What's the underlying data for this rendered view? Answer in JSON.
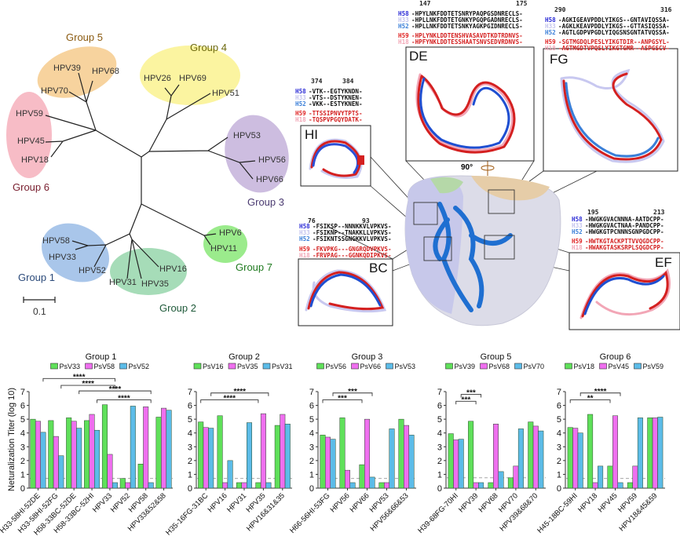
{
  "tree": {
    "scale_bar": "0.1",
    "groups": [
      {
        "name": "Group 1",
        "color": "#a9c6ea",
        "members": [
          "HPV58",
          "HPV33",
          "HPV52"
        ]
      },
      {
        "name": "Group 2",
        "color": "#a6dcb8",
        "members": [
          "HPV31",
          "HPV35",
          "HPV16"
        ]
      },
      {
        "name": "Group 3",
        "color": "#cdbde0",
        "members": [
          "HPV53",
          "HPV56",
          "HPV66"
        ]
      },
      {
        "name": "Group 4",
        "color": "#fbf4a0",
        "members": [
          "HPV26",
          "HPV69",
          "HPV51"
        ]
      },
      {
        "name": "Group 5",
        "color": "#f7d39e",
        "members": [
          "HPV39",
          "HPV68",
          "HPV70"
        ]
      },
      {
        "name": "Group 6",
        "color": "#f7bcc6",
        "members": [
          "HPV59",
          "HPV45",
          "HPV18"
        ]
      },
      {
        "name": "Group 7",
        "color": "#9beb8c",
        "members": [
          "HPV6",
          "HPV11"
        ]
      }
    ]
  },
  "structure": {
    "rotation_label": "90°",
    "row_colors": {
      "H58": "#2b2bd6",
      "H33": "#c4c4ee",
      "H52": "#3a7fd8",
      "H59": "#e02424",
      "H18": "#f2a6b6"
    },
    "insets": [
      {
        "label": "HI",
        "start": "374",
        "end": "384",
        "rows": [
          {
            "name": "H58",
            "seq": "-VTK--EGTYKNDN-"
          },
          {
            "name": "H33",
            "seq": "-VTS--DSTYKNEN-"
          },
          {
            "name": "H52",
            "seq": "-VKK--ESTYKNEN-"
          },
          {
            "name": "H59",
            "seq": "-TTSSIPNVYTPTS-"
          },
          {
            "name": "H18",
            "seq": "-TQSPVPGQYDATK-"
          }
        ]
      },
      {
        "label": "DE",
        "start": "147",
        "end": "175",
        "rows": [
          {
            "name": "H58",
            "seq": "-HPYLNKFDDTETSNRYPAQPGSDNRECLS-"
          },
          {
            "name": "H33",
            "seq": "-HPLLNKFDDTETGNKYPGQPGADNRECLS-"
          },
          {
            "name": "H52",
            "seq": "-HPLLNKFDDTETSNKYAGKPGIDNRECLS-"
          },
          {
            "name": "H59",
            "seq": "-HPLYNKLDDTENSHVASAVDTKDTRDNVS-"
          },
          {
            "name": "H18",
            "seq": "-HPFYNKLDDTESSHAATSNVSEDVRDNVS-"
          }
        ]
      },
      {
        "label": "FG",
        "start": "290",
        "end": "316",
        "rows": [
          {
            "name": "H58",
            "seq": "-AGKIGEAVPDDLYIKGS--GNTAVIQSSA-"
          },
          {
            "name": "H33",
            "seq": "-AGKLKEAVPDDLYIKGS--GTTASIQSSA-"
          },
          {
            "name": "H52",
            "seq": "-AGTLGDPVPGDLYIQGSNSGNTATVQSSA-"
          },
          {
            "name": "H59",
            "seq": "-SGTMGDQLPESLYIKGTDIR--ANPGSYL-"
          },
          {
            "name": "H18",
            "seq": "-AGTMGDTVPQSLYIKGTGMR--ASPGSCV-"
          }
        ]
      },
      {
        "label": "BC",
        "start": "76",
        "end": "93",
        "rows": [
          {
            "name": "H58",
            "seq": "-FSIKSP--NNNKKVLVPKVS-"
          },
          {
            "name": "H33",
            "seq": "-FSIKNP--TNAKKLLVPKVS-"
          },
          {
            "name": "H52",
            "seq": "-FSIKNTSSGNGKKVLVPKVS-"
          },
          {
            "name": "H59",
            "seq": "-FKVPKG---GNGRQDVPKVS-"
          },
          {
            "name": "H18",
            "seq": "-FRVPAG---GGNKQDIPKVS-"
          }
        ]
      },
      {
        "label": "EF",
        "start": "195",
        "end": "213",
        "rows": [
          {
            "name": "H58",
            "seq": "-HWGKGVACNNNA-AATDCPP-"
          },
          {
            "name": "H33",
            "seq": "-HWGKGVACTNAA-PANDCPP-"
          },
          {
            "name": "H52",
            "seq": "-HWGKGTPCNNNSGNPGDCPP-"
          },
          {
            "name": "H59",
            "seq": "-HWTKGTACKPTTVVQGDCPP-"
          },
          {
            "name": "H18",
            "seq": "-HWAKGTASKSRPLSQGDCPP-"
          }
        ]
      }
    ]
  },
  "chart_data": [
    {
      "type": "bar",
      "title": "Group 1",
      "ylabel": "Neturalization Titer (log 10)",
      "ylim": [
        0,
        7
      ],
      "yticks": [
        0,
        1,
        2,
        3,
        4,
        5,
        6,
        7
      ],
      "detection_limit": 0.7,
      "legend": "top",
      "categories": [
        "H33-58HI-52DE",
        "H33-58HI-52FG",
        "H58-33BC-52DE",
        "H58-33BC-52HI",
        "HPV33",
        "HPV52",
        "HPV58",
        "HPV33&52&58"
      ],
      "series": [
        {
          "name": "PsV33",
          "color": "#5fe05a",
          "values": [
            5.0,
            4.9,
            5.1,
            4.9,
            6.05,
            0.7,
            1.75,
            5.15
          ]
        },
        {
          "name": "PsV58",
          "color": "#ef6fef",
          "values": [
            4.85,
            3.75,
            4.85,
            5.35,
            2.45,
            0.4,
            5.9,
            5.8
          ]
        },
        {
          "name": "PsV52",
          "color": "#5cbce8",
          "values": [
            4.05,
            2.35,
            4.35,
            4.2,
            0.4,
            5.95,
            0.4,
            5.65
          ]
        }
      ],
      "significance": [
        {
          "from": [
            0,
            2
          ],
          "to": [
            4,
            2
          ],
          "y": 7.95,
          "label": "****"
        },
        {
          "from": [
            1,
            2
          ],
          "to": [
            4,
            2
          ],
          "y": 7.45,
          "label": "****"
        },
        {
          "from": [
            2,
            2
          ],
          "to": [
            6,
            2
          ],
          "y": 7.05,
          "label": "****"
        },
        {
          "from": [
            3,
            2
          ],
          "to": [
            6,
            2
          ],
          "y": 6.4,
          "label": "****"
        }
      ]
    },
    {
      "type": "bar",
      "title": "Group 2",
      "ylim": [
        0,
        7
      ],
      "yticks": [
        0,
        1,
        2,
        3,
        4,
        5,
        6,
        7
      ],
      "detection_limit": 0.7,
      "legend": "top",
      "categories": [
        "H35-16FG-31BC",
        "HPV16",
        "HPV31",
        "HPV35",
        "HPV16&31&35"
      ],
      "series": [
        {
          "name": "PsV16",
          "color": "#5fe05a",
          "values": [
            4.8,
            5.25,
            0.4,
            0.4,
            4.55
          ]
        },
        {
          "name": "PsV35",
          "color": "#ef6fef",
          "values": [
            4.4,
            0.4,
            0.4,
            5.4,
            5.35
          ]
        },
        {
          "name": "PsV31",
          "color": "#5cbce8",
          "values": [
            4.35,
            2.0,
            4.75,
            0.4,
            4.65
          ]
        }
      ],
      "significance": [
        {
          "from": [
            0,
            2
          ],
          "to": [
            3,
            2
          ],
          "y": 6.9,
          "label": "****"
        },
        {
          "from": [
            0,
            0
          ],
          "to": [
            3,
            0
          ],
          "y": 6.4,
          "label": "****"
        }
      ]
    },
    {
      "type": "bar",
      "title": "Group 3",
      "ylim": [
        0,
        7
      ],
      "yticks": [
        0,
        1,
        2,
        3,
        4,
        5,
        6,
        7
      ],
      "detection_limit": 0.7,
      "legend": "top",
      "categories": [
        "H66-56HI-53FG",
        "HPV56",
        "HPV66",
        "HPV53",
        "HPV56&66&53"
      ],
      "series": [
        {
          "name": "PsV56",
          "color": "#5fe05a",
          "values": [
            3.85,
            5.1,
            1.7,
            0.4,
            5.0
          ]
        },
        {
          "name": "PsV66",
          "color": "#ef6fef",
          "values": [
            3.7,
            1.3,
            5.0,
            0.4,
            4.55
          ]
        },
        {
          "name": "PsV53",
          "color": "#5cbce8",
          "values": [
            3.55,
            0.4,
            0.8,
            4.3,
            3.85
          ]
        }
      ],
      "significance": [
        {
          "from": [
            0,
            2
          ],
          "to": [
            2,
            2
          ],
          "y": 6.9,
          "label": "***"
        },
        {
          "from": [
            0,
            0
          ],
          "to": [
            2,
            0
          ],
          "y": 6.4,
          "label": "***"
        }
      ]
    },
    {
      "type": "bar",
      "title": "Group 5",
      "ylim": [
        0,
        7
      ],
      "yticks": [
        0,
        1,
        2,
        3,
        4,
        5,
        6,
        7
      ],
      "detection_limit": 0.75,
      "legend": "top",
      "categories": [
        "H39-68FG-70HI",
        "HPV39",
        "HPV68",
        "HPV70",
        "HPV39&68&70"
      ],
      "series": [
        {
          "name": "PsV39",
          "color": "#5fe05a",
          "values": [
            3.95,
            4.85,
            0.4,
            0.75,
            4.8
          ]
        },
        {
          "name": "PsV68",
          "color": "#ef6fef",
          "values": [
            3.5,
            0.4,
            4.65,
            1.6,
            4.5
          ]
        },
        {
          "name": "PsV70",
          "color": "#5cbce8",
          "values": [
            3.55,
            0.4,
            1.2,
            4.3,
            4.15
          ]
        }
      ],
      "significance": [
        {
          "from": [
            0,
            2
          ],
          "to": [
            1,
            2
          ],
          "y": 6.8,
          "label": "***"
        },
        {
          "from": [
            0,
            1
          ],
          "to": [
            1,
            1
          ],
          "y": 6.3,
          "label": "***"
        }
      ]
    },
    {
      "type": "bar",
      "title": "Group 6",
      "ylim": [
        0,
        7
      ],
      "yticks": [
        0,
        1,
        2,
        3,
        4,
        5,
        6,
        7
      ],
      "detection_limit": 0.7,
      "legend": "top",
      "categories": [
        "H45-18BC-59HI",
        "HPV18",
        "HPV45",
        "HPV59",
        "HPV18&45&59"
      ],
      "series": [
        {
          "name": "PsV18",
          "color": "#5fe05a",
          "values": [
            4.4,
            5.35,
            1.6,
            0.4,
            5.1
          ]
        },
        {
          "name": "PsV45",
          "color": "#ef6fef",
          "values": [
            4.35,
            0.4,
            5.25,
            1.6,
            5.1
          ]
        },
        {
          "name": "PsV59",
          "color": "#5cbce8",
          "values": [
            4.0,
            1.6,
            0.4,
            5.1,
            5.15
          ]
        }
      ],
      "significance": [
        {
          "from": [
            0,
            2
          ],
          "to": [
            2,
            2
          ],
          "y": 6.9,
          "label": "****"
        },
        {
          "from": [
            0,
            0
          ],
          "to": [
            2,
            0
          ],
          "y": 6.4,
          "label": "**"
        }
      ]
    }
  ]
}
